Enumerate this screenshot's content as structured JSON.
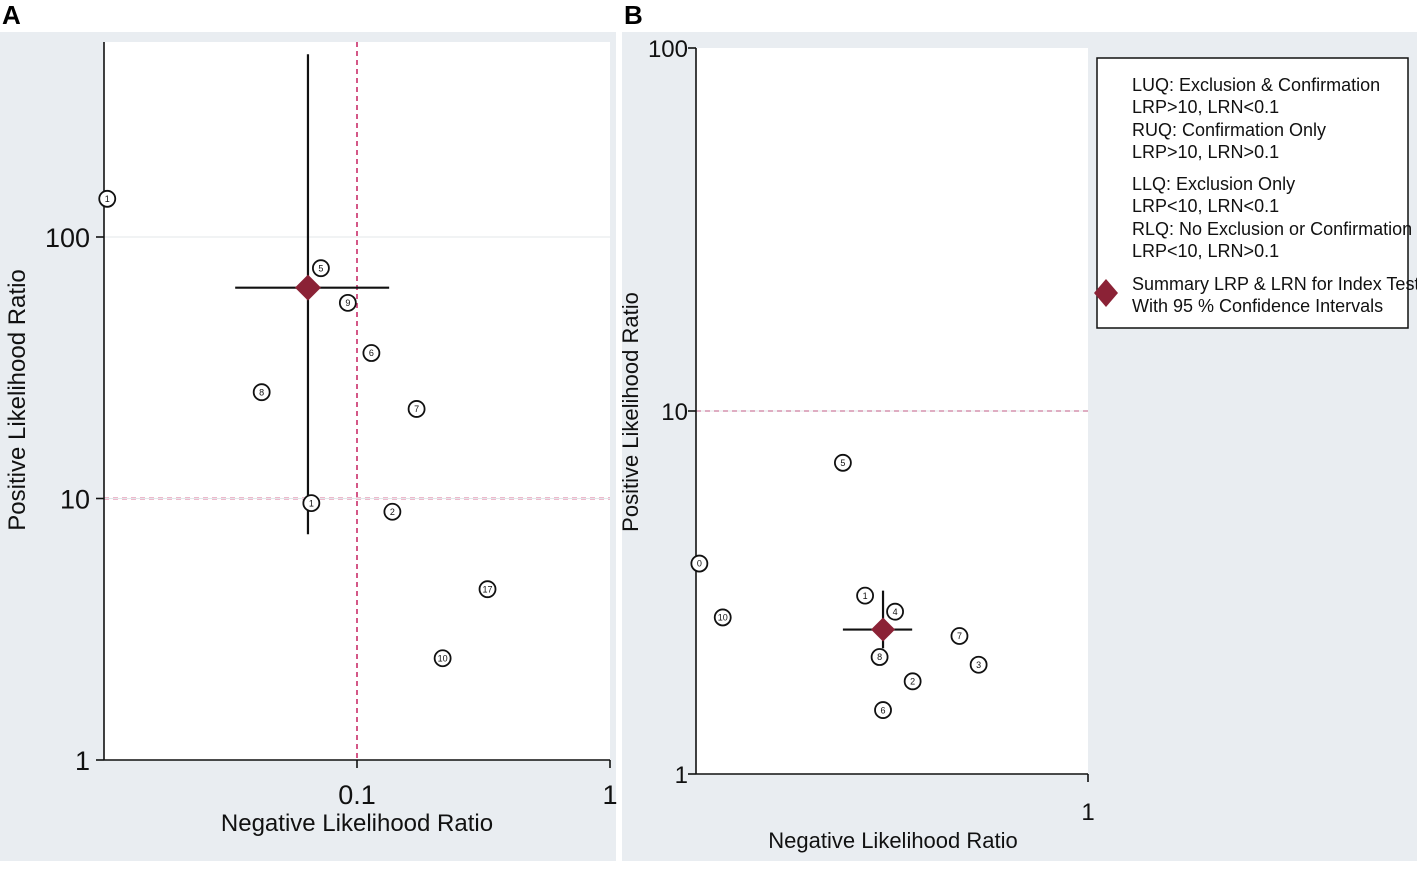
{
  "chart_data": [
    {
      "panel": "A",
      "type": "scatter",
      "xlabel": "Negative Likelihood Ratio",
      "ylabel": "Positive Likelihood Ratio",
      "x_scale": "log",
      "y_scale": "log",
      "xlim": [
        0.01,
        1
      ],
      "ylim": [
        1,
        500
      ],
      "x_ticks": [
        {
          "value": 0.1,
          "label": "0.1"
        },
        {
          "value": 1,
          "label": "1"
        }
      ],
      "y_ticks": [
        {
          "value": 1,
          "label": "1"
        },
        {
          "value": 10,
          "label": "10"
        },
        {
          "value": 100,
          "label": "100"
        }
      ],
      "reference_lines": {
        "x": 0.1,
        "y": 10
      },
      "summary": {
        "nlr": 0.064,
        "plr": 64,
        "nlr_ci": [
          0.033,
          0.134
        ],
        "plr_ci": [
          7.3,
          500
        ]
      },
      "studies": [
        {
          "label": "1",
          "nlr": 0.0103,
          "plr": 140
        },
        {
          "label": "5",
          "nlr": 0.072,
          "plr": 76
        },
        {
          "label": "9",
          "nlr": 0.092,
          "plr": 56
        },
        {
          "label": "6",
          "nlr": 0.114,
          "plr": 36
        },
        {
          "label": "8",
          "nlr": 0.042,
          "plr": 25.5
        },
        {
          "label": "7",
          "nlr": 0.172,
          "plr": 22
        },
        {
          "label": "1",
          "nlr": 0.066,
          "plr": 9.6
        },
        {
          "label": "2",
          "nlr": 0.138,
          "plr": 8.9
        },
        {
          "label": "17",
          "nlr": 0.328,
          "plr": 4.5
        },
        {
          "label": "10",
          "nlr": 0.218,
          "plr": 2.45
        }
      ]
    },
    {
      "panel": "B",
      "type": "scatter",
      "xlabel": "Negative Likelihood Ratio",
      "ylabel": "Positive Likelihood Ratio",
      "x_scale": "log",
      "y_scale": "log",
      "xlim": [
        0.1,
        1
      ],
      "ylim": [
        1,
        100
      ],
      "x_ticks": [
        {
          "value": 1,
          "label": "1"
        }
      ],
      "y_ticks": [
        {
          "value": 1,
          "label": "1"
        },
        {
          "value": 10,
          "label": "10"
        },
        {
          "value": 100,
          "label": "100"
        }
      ],
      "reference_lines": {
        "y": 10
      },
      "summary": {
        "nlr": 0.3,
        "plr": 2.5,
        "nlr_ci": [
          0.237,
          0.356
        ],
        "plr_ci": [
          2.22,
          3.2
        ]
      },
      "studies": [
        {
          "label": "5",
          "nlr": 0.237,
          "plr": 7.2
        },
        {
          "label": "0",
          "nlr": 0.102,
          "plr": 3.8
        },
        {
          "label": "10",
          "nlr": 0.117,
          "plr": 2.7
        },
        {
          "label": "1",
          "nlr": 0.27,
          "plr": 3.1
        },
        {
          "label": "4",
          "nlr": 0.322,
          "plr": 2.8
        },
        {
          "label": "8",
          "nlr": 0.294,
          "plr": 2.1
        },
        {
          "label": "7",
          "nlr": 0.47,
          "plr": 2.4
        },
        {
          "label": "3",
          "nlr": 0.526,
          "plr": 2.0
        },
        {
          "label": "2",
          "nlr": 0.357,
          "plr": 1.8
        },
        {
          "label": "6",
          "nlr": 0.3,
          "plr": 1.5
        }
      ]
    }
  ],
  "panel_labels": {
    "a": "A",
    "b": "B"
  },
  "legend": {
    "quadrants": [
      {
        "title": "LUQ: Exclusion & Confirmation",
        "rule": "LRP>10, LRN<0.1"
      },
      {
        "title": "RUQ: Confirmation Only",
        "rule": "LRP>10, LRN>0.1"
      },
      {
        "title": "LLQ: Exclusion Only",
        "rule": "LRP<10, LRN<0.1"
      },
      {
        "title": "RLQ: No Exclusion or Confirmation",
        "rule": "LRP<10, LRN>0.1"
      }
    ],
    "summary_line1": "Summary LRP & LRN for Index Test",
    "summary_line2": "With 95 % Confidence Intervals"
  },
  "colors": {
    "background": "#e9edf1",
    "plot_area": "#ffffff",
    "axis": "#111111",
    "reference": "#d0457a",
    "summary_marker": "#8b2236",
    "marker_stroke": "#111111"
  }
}
